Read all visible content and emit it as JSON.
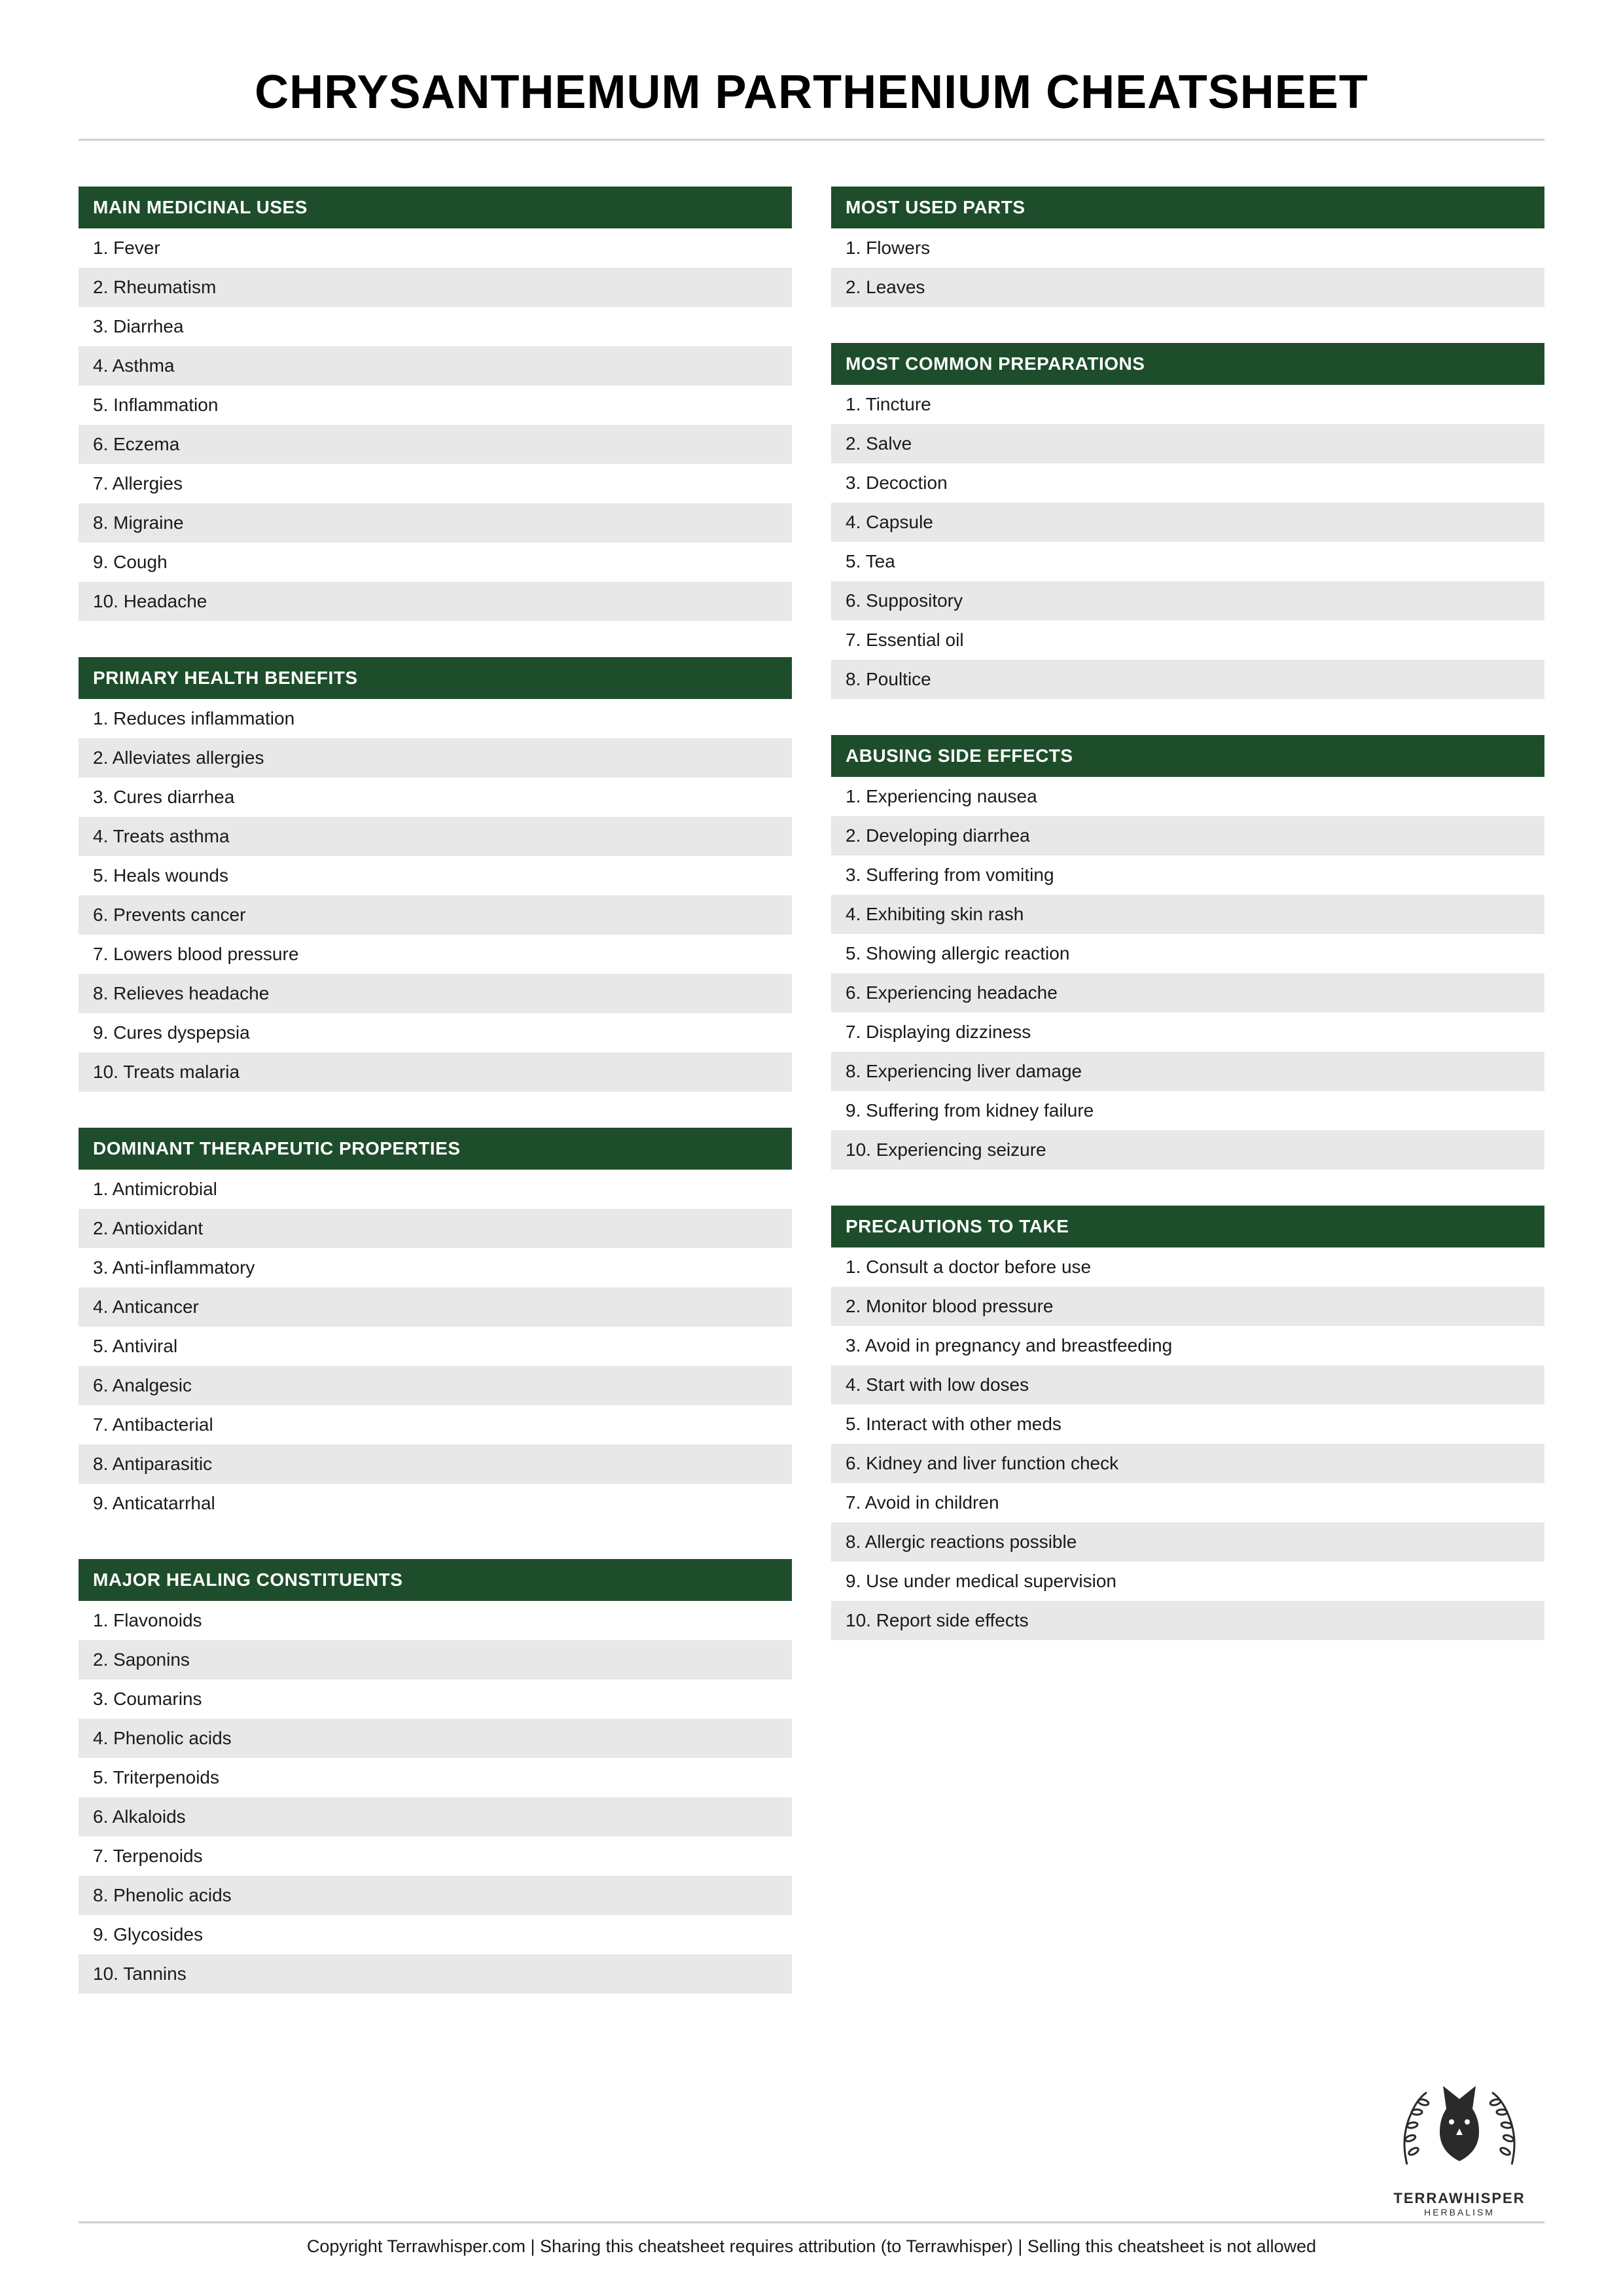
{
  "title": "CHRYSANTHEMUM PARTHENIUM CHEATSHEET",
  "colors": {
    "header_bg": "#1e4d2b",
    "header_text": "#ffffff",
    "row_odd_bg": "#ffffff",
    "row_even_bg": "#e8e8e8",
    "text": "#1a1a1a",
    "divider": "#d0d0d0"
  },
  "left_sections": [
    {
      "header": "MAIN MEDICINAL USES",
      "items": [
        "1. Fever",
        "2. Rheumatism",
        "3. Diarrhea",
        "4. Asthma",
        "5. Inflammation",
        "6. Eczema",
        "7. Allergies",
        "8. Migraine",
        "9. Cough",
        "10. Headache"
      ]
    },
    {
      "header": "PRIMARY HEALTH BENEFITS",
      "items": [
        "1. Reduces inflammation",
        "2. Alleviates allergies",
        "3. Cures diarrhea",
        "4. Treats asthma",
        "5. Heals wounds",
        "6. Prevents cancer",
        "7. Lowers blood pressure",
        "8. Relieves headache",
        "9. Cures dyspepsia",
        "10. Treats malaria"
      ]
    },
    {
      "header": "DOMINANT THERAPEUTIC PROPERTIES",
      "items": [
        "1. Antimicrobial",
        "2. Antioxidant",
        "3. Anti-inflammatory",
        "4. Anticancer",
        "5. Antiviral",
        "6. Analgesic",
        "7. Antibacterial",
        "8. Antiparasitic",
        "9. Anticatarrhal"
      ]
    },
    {
      "header": "MAJOR HEALING CONSTITUENTS",
      "items": [
        "1. Flavonoids",
        "2. Saponins",
        "3. Coumarins",
        "4. Phenolic acids",
        "5. Triterpenoids",
        "6. Alkaloids",
        "7. Terpenoids",
        "8. Phenolic acids",
        "9. Glycosides",
        "10. Tannins"
      ]
    }
  ],
  "right_sections": [
    {
      "header": "MOST USED PARTS",
      "items": [
        "1. Flowers",
        "2. Leaves"
      ]
    },
    {
      "header": "MOST COMMON PREPARATIONS",
      "items": [
        "1. Tincture",
        "2. Salve",
        "3. Decoction",
        "4. Capsule",
        "5. Tea",
        "6. Suppository",
        "7. Essential oil",
        "8. Poultice"
      ]
    },
    {
      "header": "ABUSING SIDE EFFECTS",
      "items": [
        "1. Experiencing nausea",
        "2. Developing diarrhea",
        "3. Suffering from vomiting",
        "4. Exhibiting skin rash",
        "5. Showing allergic reaction",
        "6. Experiencing headache",
        "7. Displaying dizziness",
        "8. Experiencing liver damage",
        "9. Suffering from kidney failure",
        "10. Experiencing seizure"
      ]
    },
    {
      "header": "PRECAUTIONS TO TAKE",
      "items": [
        "1. Consult a doctor before use",
        "2. Monitor blood pressure",
        "3. Avoid in pregnancy and breastfeeding",
        "4. Start with low doses",
        "5. Interact with other meds",
        "6. Kidney and liver function check",
        "7. Avoid in children",
        "8. Allergic reactions possible",
        "9. Use under medical supervision",
        "10. Report side effects"
      ]
    }
  ],
  "logo": {
    "name": "TERRAWHISPER",
    "sub": "HERBALISM"
  },
  "footer": "Copyright Terrawhisper.com | Sharing this cheatsheet requires attribution (to Terrawhisper) | Selling this cheatsheet is not allowed"
}
